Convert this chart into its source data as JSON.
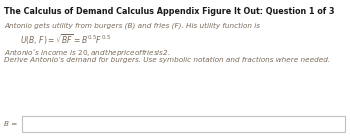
{
  "title": "The Calculus of Demand Calculus Appendix Figure It Out: Question 1 of 3",
  "line1": "Antonio gets utility from burgers (B) and fries (F). His utility function is",
  "line3": "Antonio’s income is $20, and the price of fries is $2.",
  "line4": "Derive Antonio’s demand for burgers. Use symbolic notation and fractions where needed.",
  "label_b": "B =",
  "bg_color": "#ffffff",
  "text_color": "#7a6a5a",
  "title_color": "#1a1a1a",
  "input_box_edge": "#c0c0c0",
  "title_fontsize": 5.8,
  "body_fontsize": 5.2,
  "math_fontsize": 5.5
}
